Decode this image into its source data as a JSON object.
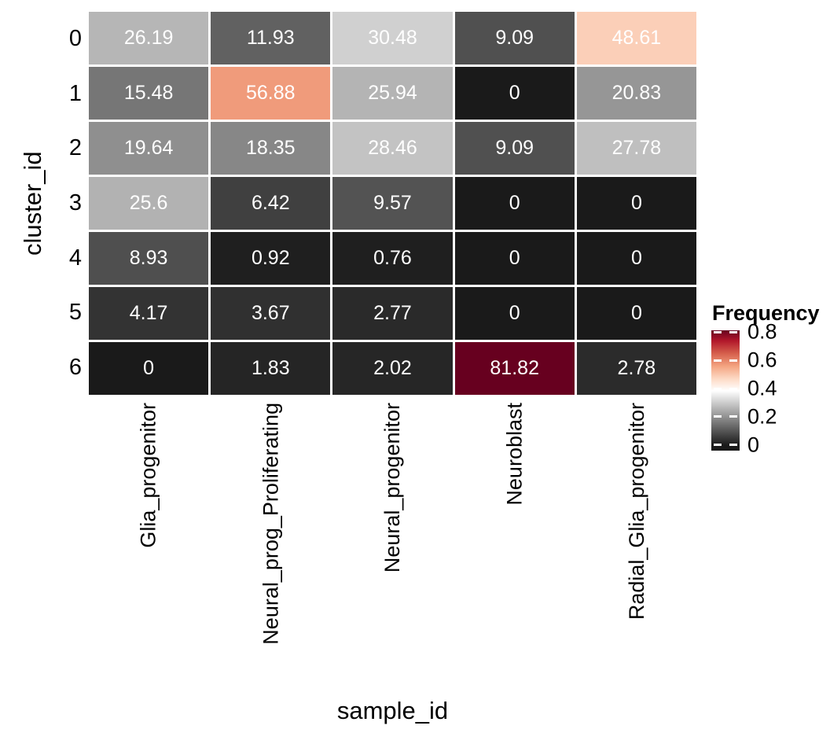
{
  "chart_data": {
    "type": "heatmap",
    "xlabel": "sample_id",
    "ylabel": "cluster_id",
    "x_categories": [
      "Glia_progenitor",
      "Neural_prog_Proliferating",
      "Neural_progenitor",
      "Neuroblast",
      "Radial_Glia_progenitor"
    ],
    "y_categories": [
      "0",
      "1",
      "2",
      "3",
      "4",
      "5",
      "6"
    ],
    "values": [
      [
        26.19,
        11.93,
        30.48,
        9.09,
        48.61
      ],
      [
        15.48,
        56.88,
        25.94,
        0,
        20.83
      ],
      [
        19.64,
        18.35,
        28.46,
        9.09,
        27.78
      ],
      [
        25.6,
        6.42,
        9.57,
        0,
        0
      ],
      [
        8.93,
        0.92,
        0.76,
        0,
        0
      ],
      [
        4.17,
        3.67,
        2.77,
        0,
        0
      ],
      [
        0,
        1.83,
        2.02,
        81.82,
        2.78
      ]
    ],
    "value_unit": "percent",
    "cell_label_color": "#ffffff",
    "legend": {
      "title": "Frequency",
      "tick_labels": [
        "0.8",
        "0.6",
        "0.4",
        "0.2",
        "0"
      ],
      "tick_values": [
        0.8,
        0.6,
        0.4,
        0.2,
        0
      ],
      "domain": [
        0,
        0.8182
      ]
    },
    "colormap": {
      "description": "dark gray/black at 0 through white midpoint to dark red at max (reversed RdGy style)",
      "stops": [
        {
          "t": 0.0,
          "color": "#1a1a1a"
        },
        {
          "t": 0.47,
          "color": "#ffffff"
        },
        {
          "t": 0.57,
          "color": "#fddbc7"
        },
        {
          "t": 0.68,
          "color": "#f4a582"
        },
        {
          "t": 0.79,
          "color": "#d6604d"
        },
        {
          "t": 0.9,
          "color": "#b2182b"
        },
        {
          "t": 1.0,
          "color": "#67001f"
        }
      ]
    },
    "grid_gap_color": "#ffffff",
    "background_color": "#ffffff"
  }
}
